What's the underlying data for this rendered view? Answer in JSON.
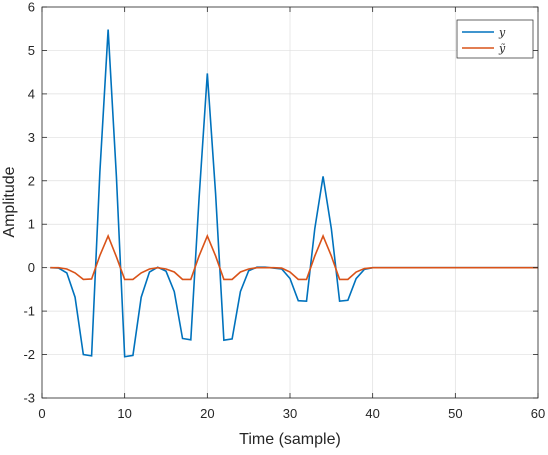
{
  "chart_data": {
    "type": "line",
    "xlabel": "Time  (sample)",
    "ylabel": "Amplitude",
    "xlim": [
      0,
      60
    ],
    "ylim": [
      -3,
      6
    ],
    "xticks": [
      0,
      10,
      20,
      30,
      40,
      50,
      60
    ],
    "yticks": [
      -3,
      -2,
      -1,
      0,
      1,
      2,
      3,
      4,
      5,
      6
    ],
    "xtick_labels": [
      "0",
      "10",
      "20",
      "30",
      "40",
      "50",
      "60"
    ],
    "ytick_labels": [
      "-3",
      "-2",
      "-1",
      "0",
      "1",
      "2",
      "3",
      "4",
      "5",
      "6"
    ],
    "grid": true,
    "legend_position": "top-right",
    "x": [
      1,
      2,
      3,
      4,
      5,
      6,
      7,
      8,
      9,
      10,
      11,
      12,
      13,
      14,
      15,
      16,
      17,
      18,
      19,
      20,
      21,
      22,
      23,
      24,
      25,
      26,
      27,
      28,
      29,
      30,
      31,
      32,
      33,
      34,
      35,
      36,
      37,
      38,
      39,
      40,
      41,
      42,
      43,
      44,
      45,
      46,
      47,
      48,
      49,
      50,
      51,
      52,
      53,
      54,
      55,
      56,
      57,
      58,
      59,
      60
    ],
    "series": [
      {
        "name": "y",
        "color": "#0072BD",
        "values": [
          0,
          -0.01,
          -0.12,
          -0.68,
          -2.0,
          -2.03,
          2.2,
          5.48,
          2.1,
          -2.05,
          -2.02,
          -0.68,
          -0.1,
          0.01,
          -0.08,
          -0.55,
          -1.63,
          -1.66,
          1.6,
          4.47,
          1.7,
          -1.67,
          -1.64,
          -0.55,
          -0.07,
          0.01,
          0.01,
          -0.01,
          -0.03,
          -0.25,
          -0.76,
          -0.77,
          0.9,
          2.1,
          0.9,
          -0.77,
          -0.75,
          -0.25,
          -0.04,
          0,
          0,
          0,
          0,
          0,
          0,
          0,
          0,
          0,
          0,
          0,
          0,
          0,
          0,
          0,
          0,
          0,
          0,
          0,
          0,
          0
        ]
      },
      {
        "name": "ỹ",
        "color": "#D95319",
        "values": [
          0,
          0,
          -0.03,
          -0.12,
          -0.27,
          -0.26,
          0.28,
          0.73,
          0.25,
          -0.27,
          -0.27,
          -0.12,
          -0.03,
          0,
          -0.03,
          -0.1,
          -0.27,
          -0.27,
          0.27,
          0.73,
          0.27,
          -0.27,
          -0.27,
          -0.1,
          -0.03,
          0,
          0,
          0,
          -0.01,
          -0.1,
          -0.27,
          -0.27,
          0.27,
          0.73,
          0.27,
          -0.27,
          -0.27,
          -0.1,
          -0.02,
          0,
          0,
          0,
          0,
          0,
          0,
          0,
          0,
          0,
          0,
          0,
          0,
          0,
          0,
          0,
          0,
          0,
          0,
          0,
          0,
          0
        ]
      }
    ]
  }
}
